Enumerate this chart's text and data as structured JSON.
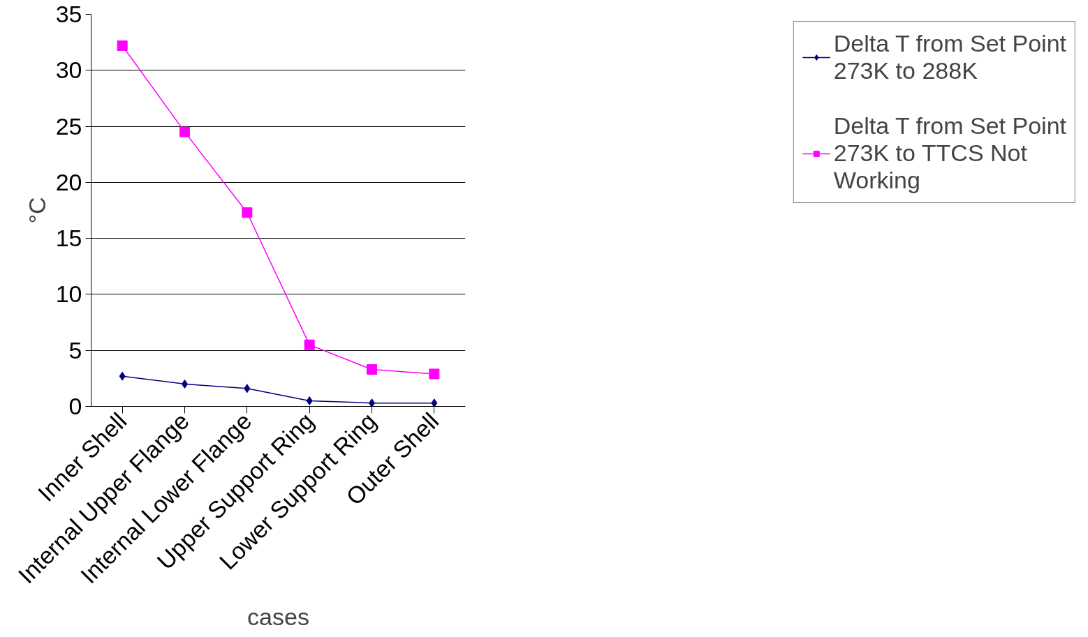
{
  "chart_data": {
    "type": "line",
    "xlabel": "cases",
    "ylabel": "°C",
    "categories": [
      "Inner Shell",
      "Internal Upper Flange",
      "Internal Lower Flange",
      "Upper Support Ring",
      "Lower Support Ring",
      "Outer Shell"
    ],
    "series": [
      {
        "name": "Delta T from Set Point 273K to 288K",
        "color": "#000080",
        "marker": "diamond",
        "values": [
          2.7,
          2.0,
          1.6,
          0.5,
          0.3,
          0.3
        ]
      },
      {
        "name": "Delta T from Set Point 273K to TTCS Not Working",
        "color": "#ff00ff",
        "marker": "square",
        "values": [
          32.2,
          24.5,
          17.3,
          5.5,
          3.3,
          2.9
        ]
      }
    ],
    "ylim": [
      0,
      35
    ],
    "yticks": [
      0,
      5,
      10,
      15,
      20,
      25,
      30,
      35
    ],
    "grid": "y",
    "legend": "right",
    "line_style": "solid"
  }
}
